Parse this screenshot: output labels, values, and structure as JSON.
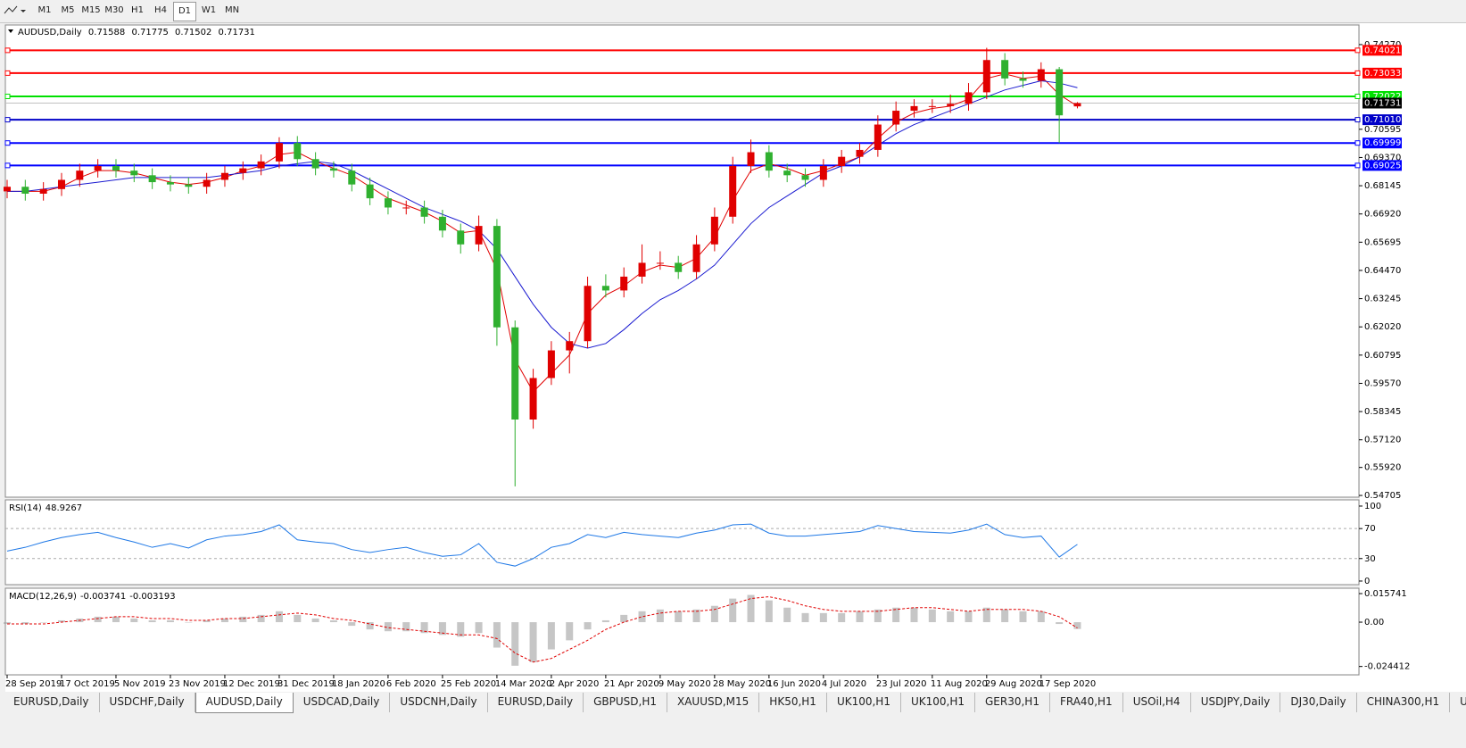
{
  "toolbar": {
    "timeframes": [
      "M1",
      "M5",
      "M15",
      "M30",
      "H1",
      "H4",
      "D1",
      "W1",
      "MN"
    ],
    "active_timeframe": "D1"
  },
  "chart_data": [
    {
      "type": "candlestick",
      "symbol": "AUDUSD,Daily",
      "categories": [
        "28 Sep 2019",
        null,
        null,
        "17 Oct 2019",
        null,
        null,
        "5 Nov 2019",
        null,
        null,
        "23 Nov 2019",
        null,
        null,
        "12 Dec 2019",
        null,
        null,
        "31 Dec 2019",
        null,
        null,
        "18 Jan 2020",
        null,
        null,
        "6 Feb 2020",
        null,
        null,
        "25 Feb 2020",
        null,
        null,
        "14 Mar 2020",
        null,
        null,
        "2 Apr 2020",
        null,
        null,
        "21 Apr 2020",
        null,
        null,
        "9 May 2020",
        null,
        null,
        "28 May 2020",
        null,
        null,
        "16 Jun 2020",
        null,
        null,
        "4 Jul 2020",
        null,
        null,
        "23 Jul 2020",
        null,
        null,
        "11 Aug 2020",
        null,
        null,
        "29 Aug 2020",
        null,
        null,
        "17 Sep 2020",
        null,
        null
      ],
      "open": [
        0.679,
        0.681,
        0.678,
        0.68,
        0.684,
        0.688,
        0.69,
        0.688,
        0.686,
        0.683,
        0.682,
        0.681,
        0.684,
        0.687,
        0.689,
        0.692,
        0.7,
        0.693,
        0.689,
        0.688,
        0.682,
        0.676,
        0.672,
        0.672,
        0.668,
        0.662,
        0.656,
        0.664,
        0.62,
        0.58,
        0.598,
        0.61,
        0.614,
        0.638,
        0.636,
        0.642,
        0.648,
        0.648,
        0.644,
        0.656,
        0.668,
        0.69,
        0.696,
        0.688,
        0.686,
        0.684,
        0.69,
        0.694,
        0.697,
        0.708,
        0.714,
        0.716,
        0.716,
        0.717,
        0.722,
        0.736,
        0.728,
        0.727,
        0.732,
        0.71588
      ],
      "high": [
        0.684,
        0.684,
        0.683,
        0.687,
        0.691,
        0.693,
        0.693,
        0.691,
        0.689,
        0.686,
        0.685,
        0.687,
        0.69,
        0.692,
        0.695,
        0.7025,
        0.703,
        0.696,
        0.692,
        0.691,
        0.685,
        0.679,
        0.675,
        0.675,
        0.671,
        0.665,
        0.6685,
        0.667,
        0.623,
        0.602,
        0.614,
        0.618,
        0.642,
        0.643,
        0.646,
        0.656,
        0.653,
        0.651,
        0.66,
        0.672,
        0.694,
        0.7015,
        0.699,
        0.691,
        0.689,
        0.693,
        0.697,
        0.7,
        0.712,
        0.718,
        0.719,
        0.719,
        0.721,
        0.726,
        0.7413,
        0.739,
        0.731,
        0.735,
        0.733,
        0.71775
      ],
      "low": [
        0.676,
        0.675,
        0.675,
        0.677,
        0.681,
        0.685,
        0.685,
        0.683,
        0.68,
        0.679,
        0.678,
        0.678,
        0.681,
        0.684,
        0.686,
        0.689,
        0.69,
        0.686,
        0.685,
        0.679,
        0.673,
        0.669,
        0.669,
        0.665,
        0.659,
        0.652,
        0.653,
        0.612,
        0.551,
        0.576,
        0.595,
        0.6,
        0.611,
        0.633,
        0.633,
        0.639,
        0.645,
        0.641,
        0.641,
        0.653,
        0.665,
        0.687,
        0.685,
        0.683,
        0.681,
        0.681,
        0.687,
        0.691,
        0.694,
        0.705,
        0.711,
        0.713,
        0.713,
        0.714,
        0.719,
        0.725,
        0.724,
        0.724,
        0.7,
        0.71502
      ],
      "close": [
        0.681,
        0.678,
        0.68,
        0.684,
        0.688,
        0.69,
        0.688,
        0.686,
        0.683,
        0.682,
        0.681,
        0.684,
        0.687,
        0.689,
        0.692,
        0.7,
        0.693,
        0.689,
        0.688,
        0.682,
        0.676,
        0.672,
        0.672,
        0.668,
        0.662,
        0.656,
        0.664,
        0.62,
        0.58,
        0.598,
        0.61,
        0.614,
        0.638,
        0.636,
        0.642,
        0.648,
        0.648,
        0.644,
        0.656,
        0.668,
        0.69,
        0.696,
        0.688,
        0.686,
        0.684,
        0.69,
        0.694,
        0.697,
        0.708,
        0.714,
        0.716,
        0.716,
        0.717,
        0.722,
        0.736,
        0.728,
        0.727,
        0.732,
        0.712,
        0.71731
      ],
      "up_color": "#e00000",
      "down_color": "#2fb02f",
      "ma": [
        {
          "color": "#e00000",
          "values": [
            0.679,
            0.679,
            0.679,
            0.681,
            0.685,
            0.688,
            0.688,
            0.687,
            0.685,
            0.683,
            0.682,
            0.683,
            0.685,
            0.688,
            0.69,
            0.695,
            0.696,
            0.692,
            0.689,
            0.686,
            0.681,
            0.676,
            0.673,
            0.67,
            0.666,
            0.661,
            0.662,
            0.645,
            0.606,
            0.592,
            0.6,
            0.608,
            0.626,
            0.634,
            0.638,
            0.644,
            0.647,
            0.646,
            0.65,
            0.659,
            0.675,
            0.688,
            0.691,
            0.689,
            0.686,
            0.688,
            0.691,
            0.694,
            0.702,
            0.709,
            0.713,
            0.715,
            0.716,
            0.719,
            0.728,
            0.73,
            0.728,
            0.729,
            0.721,
            0.716
          ]
        },
        {
          "color": "#1a1ad0",
          "values": [
            0.679,
            0.679,
            0.68,
            0.681,
            0.682,
            0.683,
            0.684,
            0.685,
            0.685,
            0.685,
            0.685,
            0.685,
            0.686,
            0.687,
            0.688,
            0.69,
            0.691,
            0.692,
            0.691,
            0.688,
            0.684,
            0.68,
            0.676,
            0.672,
            0.669,
            0.666,
            0.662,
            0.654,
            0.642,
            0.63,
            0.62,
            0.613,
            0.611,
            0.613,
            0.619,
            0.626,
            0.632,
            0.636,
            0.641,
            0.647,
            0.656,
            0.665,
            0.672,
            0.677,
            0.682,
            0.687,
            0.69,
            0.694,
            0.699,
            0.704,
            0.708,
            0.711,
            0.714,
            0.717,
            0.72,
            0.723,
            0.725,
            0.727,
            0.726,
            0.724
          ]
        }
      ],
      "levels": [
        {
          "value": 0.74021,
          "color": "#ff0000"
        },
        {
          "value": 0.73033,
          "color": "#ff0000"
        },
        {
          "value": 0.72022,
          "color": "#00e000"
        },
        {
          "value": {
            "value": 0.7101,
            "label": "0.71010"
          },
          "color": "#0000c8"
        },
        {
          "value": 0.69999,
          "color": "#0000ff"
        },
        {
          "value": 0.69025,
          "color": "#0000ff"
        }
      ],
      "ylim": [
        0.5463,
        0.7512
      ],
      "yticks": [
        {
          "value": 0.7427,
          "label": "0.74270"
        },
        0.70595,
        {
          "value": 0.6937,
          "label": "0.69370"
        },
        0.68145,
        {
          "value": 0.6692,
          "label": "0.66920"
        },
        0.65695,
        {
          "value": 0.6447,
          "label": "0.64470"
        },
        0.63245,
        {
          "value": 0.6202,
          "label": "0.62020"
        },
        0.60795,
        {
          "value": 0.5957,
          "label": "0.59570"
        },
        0.58345,
        {
          "value": 0.5712,
          "label": "0.57120"
        },
        {
          "value": 0.5592,
          "label": "0.55920"
        },
        0.54705
      ]
    },
    {
      "type": "line",
      "label": "RSI(14)",
      "color": "#1e78e6",
      "values": [
        40,
        45,
        52,
        58,
        62,
        65,
        58,
        52,
        45,
        50,
        44,
        55,
        60,
        62,
        66,
        75,
        55,
        52,
        50,
        42,
        38,
        42,
        45,
        38,
        33,
        35,
        50,
        25,
        20,
        30,
        45,
        50,
        62,
        58,
        65,
        62,
        60,
        58,
        64,
        68,
        75,
        76,
        64,
        60,
        60,
        62,
        64,
        66,
        74,
        70,
        66,
        65,
        64,
        68,
        76,
        62,
        58,
        60,
        32,
        48.9267
      ],
      "levels": [
        70,
        30
      ],
      "ylim": [
        -4.8,
        108.3
      ],
      "yticks": [
        100,
        70,
        30,
        0
      ]
    },
    {
      "type": "bar",
      "label": "MACD(12,26,9)",
      "color": "#a0a0a0",
      "signal_color": "#e00000",
      "values": [
        -0.001,
        -0.001,
        0.0,
        0.001,
        0.002,
        0.003,
        0.003,
        0.002,
        0.001,
        0.001,
        0.0,
        0.001,
        0.002,
        0.003,
        0.004,
        0.006,
        0.004,
        0.002,
        0.001,
        -0.002,
        -0.004,
        -0.005,
        -0.005,
        -0.006,
        -0.007,
        -0.008,
        -0.006,
        -0.014,
        -0.024,
        -0.022,
        -0.015,
        -0.01,
        -0.004,
        0.001,
        0.004,
        0.006,
        0.007,
        0.006,
        0.007,
        0.009,
        0.013,
        0.015,
        0.012,
        0.008,
        0.005,
        0.005,
        0.005,
        0.006,
        0.007,
        0.008,
        0.008,
        0.007,
        0.006,
        0.006,
        0.008,
        0.007,
        0.006,
        0.006,
        -0.001,
        -0.003741
      ],
      "signal": [
        -0.001,
        -0.001,
        -0.001,
        0.0,
        0.001,
        0.002,
        0.003,
        0.003,
        0.002,
        0.002,
        0.001,
        0.001,
        0.002,
        0.002,
        0.003,
        0.004,
        0.005,
        0.004,
        0.002,
        0.001,
        -0.001,
        -0.003,
        -0.004,
        -0.005,
        -0.006,
        -0.007,
        -0.007,
        -0.009,
        -0.017,
        -0.022,
        -0.02,
        -0.015,
        -0.01,
        -0.004,
        0.0,
        0.003,
        0.005,
        0.006,
        0.006,
        0.007,
        0.01,
        0.013,
        0.014,
        0.012,
        0.009,
        0.007,
        0.006,
        0.006,
        0.006,
        0.007,
        0.008,
        0.008,
        0.007,
        0.006,
        0.007,
        0.007,
        0.007,
        0.006,
        0.003,
        -0.003193
      ],
      "ylim": [
        -0.029,
        0.0187
      ],
      "yticks": [
        0.015741,
        {
          "value": 0,
          "label": "0.00"
        },
        -0.024412
      ]
    }
  ],
  "tabs": {
    "items": [
      "EURUSD,Daily",
      "USDCHF,Daily",
      "AUDUSD,Daily",
      "USDCAD,Daily",
      "USDCNH,Daily",
      "EURUSD,Daily",
      "GBPUSD,H1",
      "XAUUSD,M15",
      "HK50,H1",
      "UK100,H1",
      "UK100,H1",
      "GER30,H1",
      "FRA40,H1",
      "USOil,H4",
      "USDJPY,Daily",
      "DJ30,Daily",
      "CHINA300,H1",
      "USOil,H"
    ],
    "active": "AUDUSD,Daily"
  }
}
